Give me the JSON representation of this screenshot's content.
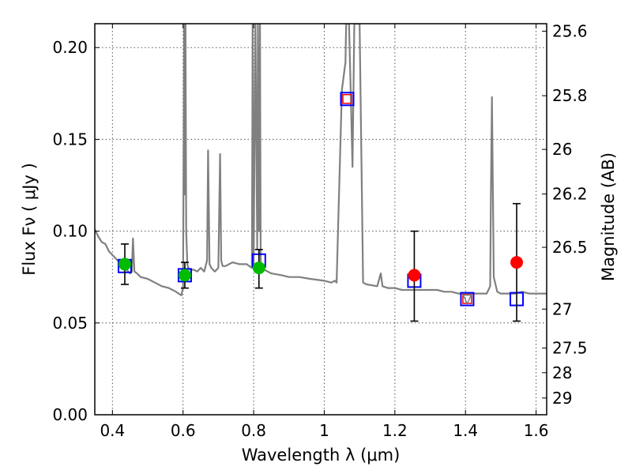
{
  "chart_data": {
    "type": "scatter",
    "xlabel": "Wavelength  λ (μm)",
    "ylabel": "Flux  Fν  ( μJy )",
    "ylabel_right": "Magnitude (AB)",
    "xlim": [
      0.35,
      1.63
    ],
    "ylim": [
      0.0,
      0.213
    ],
    "grid": true,
    "x_ticks": [
      {
        "value": 0.4,
        "label": "0.4"
      },
      {
        "value": 0.6,
        "label": "0.6"
      },
      {
        "value": 0.8,
        "label": "0.8"
      },
      {
        "value": 1.0,
        "label": "1"
      },
      {
        "value": 1.2,
        "label": "1.2"
      },
      {
        "value": 1.4,
        "label": "1.4"
      },
      {
        "value": 1.6,
        "label": "1.6"
      }
    ],
    "y_ticks": [
      {
        "value": 0.0,
        "label": "0.00"
      },
      {
        "value": 0.05,
        "label": "0.05"
      },
      {
        "value": 0.1,
        "label": "0.10"
      },
      {
        "value": 0.15,
        "label": "0.15"
      },
      {
        "value": 0.2,
        "label": "0.20"
      }
    ],
    "y_ticks_right": [
      {
        "mag": 25.6,
        "label": "25.6"
      },
      {
        "mag": 25.8,
        "label": "25.8"
      },
      {
        "mag": 26.0,
        "label": "26"
      },
      {
        "mag": 26.2,
        "label": "26.2"
      },
      {
        "mag": 26.5,
        "label": "26.5"
      },
      {
        "mag": 27.0,
        "label": "27"
      },
      {
        "mag": 27.5,
        "label": "27.5"
      },
      {
        "mag": 28.0,
        "label": "28"
      },
      {
        "mag": 29.0,
        "label": "29"
      }
    ],
    "series": [
      {
        "kind": "spectrum",
        "color": "#808080",
        "x": [
          0.35,
          0.36,
          0.37,
          0.38,
          0.39,
          0.4,
          0.41,
          0.42,
          0.43,
          0.44,
          0.45,
          0.455,
          0.458,
          0.462,
          0.47,
          0.48,
          0.5,
          0.52,
          0.54,
          0.56,
          0.58,
          0.595,
          0.6,
          0.603,
          0.605,
          0.607,
          0.609,
          0.612,
          0.615,
          0.62,
          0.63,
          0.64,
          0.65,
          0.66,
          0.668,
          0.671,
          0.675,
          0.68,
          0.69,
          0.7,
          0.705,
          0.708,
          0.712,
          0.72,
          0.74,
          0.76,
          0.78,
          0.795,
          0.797,
          0.8,
          0.805,
          0.81,
          0.812,
          0.815,
          0.818,
          0.82,
          0.825,
          0.83,
          0.85,
          0.88,
          0.9,
          0.93,
          0.96,
          1.0,
          1.02,
          1.03,
          1.035,
          1.04,
          1.05,
          1.06,
          1.062,
          1.07,
          1.075,
          1.08,
          1.085,
          1.09,
          1.1,
          1.11,
          1.12,
          1.15,
          1.16,
          1.165,
          1.18,
          1.2,
          1.22,
          1.24,
          1.26,
          1.28,
          1.3,
          1.32,
          1.34,
          1.36,
          1.38,
          1.4,
          1.42,
          1.44,
          1.46,
          1.47,
          1.472,
          1.475,
          1.48,
          1.49,
          1.5,
          1.52,
          1.54,
          1.56,
          1.58,
          1.6,
          1.63
        ],
        "y": [
          0.101,
          0.097,
          0.094,
          0.093,
          0.089,
          0.087,
          0.085,
          0.083,
          0.08,
          0.079,
          0.077,
          0.078,
          0.096,
          0.078,
          0.077,
          0.075,
          0.074,
          0.072,
          0.07,
          0.069,
          0.067,
          0.065,
          0.069,
          0.213,
          0.12,
          0.213,
          0.1,
          0.082,
          0.08,
          0.079,
          0.079,
          0.078,
          0.08,
          0.078,
          0.084,
          0.144,
          0.082,
          0.08,
          0.078,
          0.08,
          0.142,
          0.084,
          0.081,
          0.081,
          0.083,
          0.082,
          0.082,
          0.08,
          0.213,
          0.082,
          0.213,
          0.09,
          0.213,
          0.1,
          0.213,
          0.082,
          0.079,
          0.079,
          0.077,
          0.076,
          0.075,
          0.075,
          0.074,
          0.073,
          0.072,
          0.073,
          0.072,
          0.107,
          0.177,
          0.192,
          0.213,
          0.213,
          0.175,
          0.135,
          0.213,
          0.213,
          0.213,
          0.072,
          0.071,
          0.07,
          0.077,
          0.07,
          0.069,
          0.069,
          0.068,
          0.068,
          0.068,
          0.068,
          0.068,
          0.068,
          0.067,
          0.067,
          0.066,
          0.066,
          0.066,
          0.066,
          0.066,
          0.07,
          0.12,
          0.173,
          0.075,
          0.067,
          0.066,
          0.066,
          0.066,
          0.067,
          0.066,
          0.066,
          0.066
        ]
      },
      {
        "kind": "model-photometry",
        "marker": "open-square",
        "color": "#0000ff",
        "x": [
          0.435,
          0.605,
          0.815,
          1.065,
          1.255,
          1.405,
          1.545
        ],
        "y": [
          0.081,
          0.076,
          0.084,
          0.172,
          0.073,
          0.063,
          0.063
        ]
      },
      {
        "kind": "observed",
        "marker": "filled-circle",
        "color": "#00bb00",
        "x": [
          0.435,
          0.605,
          0.815
        ],
        "y": [
          0.082,
          0.076,
          0.08
        ],
        "err_low": [
          0.071,
          0.069,
          0.069
        ],
        "err_high": [
          0.093,
          0.083,
          0.09
        ]
      },
      {
        "kind": "observed",
        "marker": "filled-circle",
        "color": "#ff0000",
        "x": [
          1.255,
          1.545
        ],
        "y": [
          0.076,
          0.083
        ],
        "err_low": [
          0.051,
          0.051
        ],
        "err_high": [
          0.1,
          0.115
        ]
      },
      {
        "kind": "upper-limit",
        "marker": "open-square",
        "color": "#ff0000",
        "x": [
          1.065,
          1.405
        ],
        "y": [
          0.172,
          0.063
        ]
      },
      {
        "kind": "upper-limit",
        "marker": "triangle-down",
        "color": "#808080",
        "x": [
          1.405
        ],
        "y": [
          0.063
        ]
      }
    ]
  }
}
